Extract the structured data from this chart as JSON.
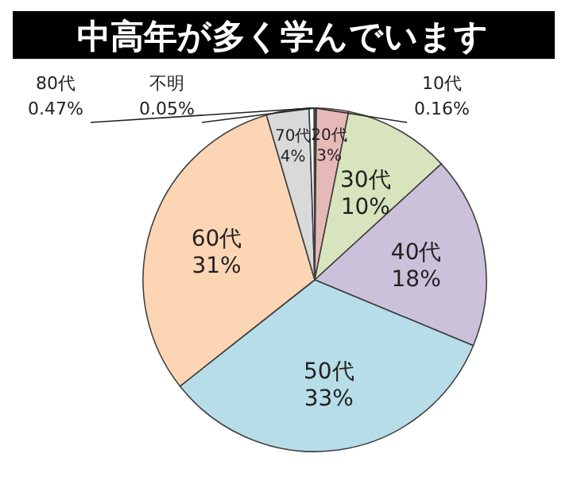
{
  "chart_data": {
    "type": "pie",
    "title": "中高年が多く学んでいます",
    "categories": [
      "10代",
      "20代",
      "30代",
      "40代",
      "50代",
      "60代",
      "70代",
      "80代",
      "不明"
    ],
    "values": [
      0.16,
      3,
      10,
      18,
      33,
      31,
      4,
      0.47,
      0.05
    ],
    "value_labels": [
      "0.16%",
      "3%",
      "10%",
      "18%",
      "33%",
      "31%",
      "4%",
      "0.47%",
      "0.05%"
    ],
    "colors": [
      "#8b1e1e",
      "#e6b9b8",
      "#d7e4bd",
      "#ccc1da",
      "#b7dee8",
      "#fcd5b5",
      "#d9d9d9",
      "#ffffff",
      "#f2f2f2"
    ]
  }
}
